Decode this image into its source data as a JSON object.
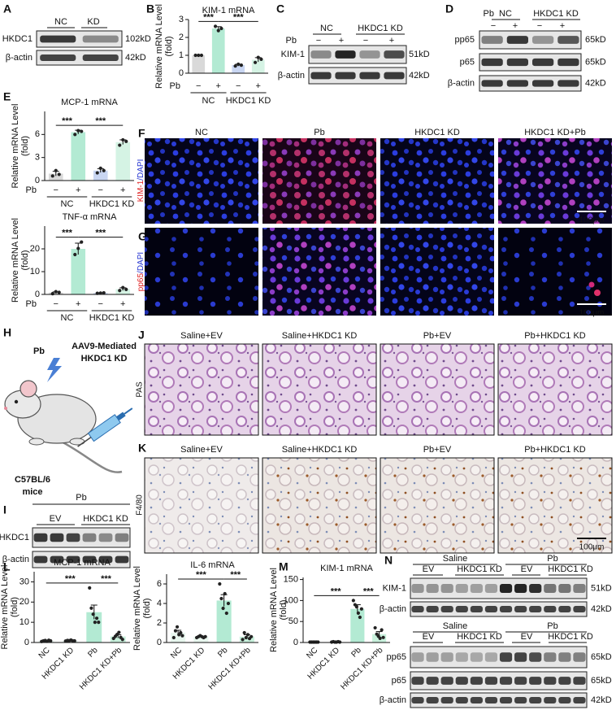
{
  "panel_letters": [
    "A",
    "B",
    "C",
    "D",
    "E",
    "F",
    "G",
    "H",
    "I",
    "J",
    "K",
    "L",
    "M",
    "N"
  ],
  "blot_A": {
    "headers": [
      "NC",
      "KD"
    ],
    "rows": [
      "HKDC1",
      "β-actin"
    ],
    "sizes": [
      "102kD",
      "42kD"
    ]
  },
  "blot_C": {
    "treatment": "Pb",
    "signs": [
      "−",
      "+",
      "−",
      "+"
    ],
    "groups": [
      "NC",
      "HKDC1 KD"
    ],
    "rows": [
      "KIM-1",
      "β-actin"
    ],
    "sizes": [
      "51kD",
      "42kD"
    ]
  },
  "blot_D": {
    "treatment": "Pb",
    "signs": [
      "−",
      "+",
      "−",
      "+"
    ],
    "groups": [
      "NC",
      "HKDC1 KD"
    ],
    "rows": [
      "pp65",
      "p65",
      "β-actin"
    ],
    "sizes": [
      "65kD",
      "65kD",
      "42kD"
    ]
  },
  "blot_I": {
    "treatment": "Pb",
    "groups": [
      "EV",
      "HKDC1 KD"
    ],
    "rows": [
      "HKDC1",
      "β-actin"
    ]
  },
  "blot_N_top": {
    "conditions": [
      "Saline",
      "Pb"
    ],
    "groups": [
      "EV",
      "HKDC1 KD",
      "EV",
      "HKDC1 KD"
    ],
    "rows": [
      "KIM-1",
      "β-actin"
    ],
    "sizes": [
      "51kD",
      "42kD"
    ]
  },
  "blot_N_bottom": {
    "conditions": [
      "Saline",
      "Pb"
    ],
    "groups": [
      "EV",
      "HKDC1 KD",
      "EV",
      "HKDC1 KD"
    ],
    "rows": [
      "pp65",
      "p65",
      "β-actin"
    ],
    "sizes": [
      "65kD",
      "65kD",
      "42kD"
    ]
  },
  "fluorescence": {
    "columns": [
      "NC",
      "Pb",
      "HKDC1 KD",
      "HKDC1 KD+Pb"
    ],
    "stain_F": [
      "KIM-1",
      "/DAPI"
    ],
    "stain_G": [
      "pp65",
      "/DAPI"
    ],
    "scale_bar": "100μm"
  },
  "model_H": {
    "treatment": "Pb",
    "vector": [
      "AAV9-Mediated",
      "HKDC1 KD"
    ],
    "mice": [
      "C57BL/6",
      "mice"
    ]
  },
  "histology": {
    "columns": [
      "Saline+EV",
      "Saline+HKDC1 KD",
      "Pb+EV",
      "Pb+HKDC1 KD"
    ],
    "stain_J": "PAS",
    "stain_K": "F4/80",
    "scale_bar": "100μm"
  },
  "chart_data": [
    {
      "type": "bar",
      "title": "KIM-1 mRNA",
      "ylabel": "Relative mRNA Level",
      "ylabel2": "(fold)",
      "treatment": "Pb",
      "categories": [
        "−",
        "+",
        "−",
        "+"
      ],
      "groups": [
        "NC",
        "HKDC1 KD"
      ],
      "values": [
        1.0,
        2.5,
        0.45,
        0.75
      ],
      "errors": [
        0.02,
        0.1,
        0.05,
        0.12
      ],
      "points": [
        [
          1,
          1,
          1
        ],
        [
          2.62,
          2.38,
          2.5
        ],
        [
          0.4,
          0.5,
          0.45
        ],
        [
          0.6,
          0.88,
          0.78
        ]
      ],
      "colors": [
        "#d9d9d9",
        "#b3ead3",
        "#c9d6f2",
        "#d5f3e4"
      ],
      "ylim": [
        0,
        3
      ],
      "yticks": [
        0,
        1,
        2,
        3
      ],
      "significance": [
        {
          "pair": [
            0,
            1
          ],
          "label": "***"
        },
        {
          "pair": [
            1,
            3
          ],
          "label": "***"
        }
      ]
    },
    {
      "type": "bar",
      "title": "MCP-1 mRNA",
      "ylabel": "Relative mRNA Level",
      "ylabel2": "(fold)",
      "treatment": "Pb",
      "categories": [
        "−",
        "+",
        "−",
        "+"
      ],
      "groups": [
        "NC",
        "HKDC1 KD"
      ],
      "values": [
        0.9,
        6.3,
        1.3,
        5.0
      ],
      "errors": [
        0.3,
        0.25,
        0.25,
        0.3
      ],
      "points": [
        [
          0.6,
          1.3,
          0.8
        ],
        [
          6.0,
          6.5,
          6.4
        ],
        [
          1.0,
          1.6,
          1.3
        ],
        [
          4.6,
          5.3,
          5.1
        ]
      ],
      "colors": [
        "#d9d9d9",
        "#b3ead3",
        "#c9d6f2",
        "#d5f3e4"
      ],
      "ylim": [
        0,
        9
      ],
      "yticks": [
        0,
        3,
        6
      ],
      "significance": [
        {
          "pair": [
            0,
            1
          ],
          "label": "***"
        },
        {
          "pair": [
            1,
            3
          ],
          "label": "***"
        }
      ]
    },
    {
      "type": "bar",
      "title": "TNF-α mRNA",
      "ylabel": "Relative mRNA Level",
      "ylabel2": "(fold)",
      "treatment": "Pb",
      "categories": [
        "−",
        "+",
        "−",
        "+"
      ],
      "groups": [
        "NC",
        "HKDC1 KD"
      ],
      "values": [
        0.8,
        20,
        0.6,
        2.3
      ],
      "errors": [
        0.3,
        2.5,
        0.1,
        0.6
      ],
      "points": [
        [
          0.3,
          1.2,
          0.9
        ],
        [
          17.5,
          20.2,
          23
        ],
        [
          0.5,
          0.6,
          0.7
        ],
        [
          1.7,
          3.0,
          2.2
        ]
      ],
      "colors": [
        "#d9d9d9",
        "#b3ead3",
        "#c9d6f2",
        "#d5f3e4"
      ],
      "ylim": [
        0,
        30
      ],
      "yticks": [
        0,
        10,
        20
      ],
      "significance": [
        {
          "pair": [
            0,
            1
          ],
          "label": "***"
        },
        {
          "pair": [
            1,
            3
          ],
          "label": "***"
        }
      ]
    },
    {
      "type": "bar",
      "title": "MCP-1 mRNA",
      "ylabel": "Relative mRNA Level",
      "ylabel2": "(fold)",
      "categories": [
        "NC",
        "HKDC1 KD",
        "Pb",
        "HKDC1 KD+Pb"
      ],
      "values": [
        0.8,
        0.9,
        15,
        3
      ],
      "errors": [
        0.2,
        0.2,
        3.5,
        0.8
      ],
      "points": [
        [
          0.5,
          0.8,
          1.0,
          0.6,
          1.1,
          0.8
        ],
        [
          0.7,
          1.0,
          0.9,
          1.2,
          0.8,
          0.8
        ],
        [
          27,
          17,
          14,
          10,
          12,
          10
        ],
        [
          2,
          3,
          4,
          5,
          2.5,
          1.5
        ]
      ],
      "colors": [
        "#e8f6ee",
        "#e8f6ee",
        "#b3ead3",
        "#c8f0dc"
      ],
      "ylim": [
        0,
        35
      ],
      "yticks": [
        0,
        10,
        20,
        30
      ],
      "significance": [
        {
          "pair": [
            0,
            2
          ],
          "label": "***"
        },
        {
          "pair": [
            2,
            3
          ],
          "label": "***"
        }
      ]
    },
    {
      "type": "bar",
      "title": "IL-6 mRNA",
      "ylabel": "Relative mRNA Level",
      "ylabel2": "(fold)",
      "categories": [
        "NC",
        "HKDC1 KD",
        "Pb",
        "HKDC1 KD+Pb"
      ],
      "values": [
        1.0,
        0.6,
        4.3,
        0.6
      ],
      "errors": [
        0.25,
        0.05,
        0.6,
        0.2
      ],
      "points": [
        [
          0.5,
          1.2,
          1.6,
          0.8,
          1.0,
          0.7
        ],
        [
          0.5,
          0.6,
          0.7,
          0.6,
          0.5,
          0.6
        ],
        [
          6.0,
          4.5,
          3.5,
          5.0,
          3.0,
          4.0
        ],
        [
          0.3,
          1.0,
          0.5,
          0.8,
          0.4,
          0.6
        ]
      ],
      "colors": [
        "#e8f6ee",
        "#e8f6ee",
        "#b3ead3",
        "#c8f0dc"
      ],
      "ylim": [
        0,
        7
      ],
      "yticks": [
        0,
        2,
        4,
        6
      ],
      "significance": [
        {
          "pair": [
            0,
            2
          ],
          "label": "***"
        },
        {
          "pair": [
            2,
            3
          ],
          "label": "***"
        }
      ]
    },
    {
      "type": "bar",
      "title": "KIM-1 mRNA",
      "ylabel": "Relative mRNA Level",
      "ylabel2": "(fold)",
      "categories": [
        "NC",
        "HKDC1 KD",
        "Pb",
        "HKDC1 KD+Pb"
      ],
      "values": [
        1,
        1,
        80,
        20
      ],
      "errors": [
        0.5,
        0.5,
        10,
        6
      ],
      "points": [
        [
          1,
          1,
          1,
          1,
          1,
          1
        ],
        [
          1,
          2,
          1,
          1,
          2,
          1
        ],
        [
          100,
          90,
          85,
          70,
          60,
          80
        ],
        [
          35,
          20,
          15,
          10,
          30,
          12
        ]
      ],
      "colors": [
        "#e8f6ee",
        "#e8f6ee",
        "#b3ead3",
        "#c8f0dc"
      ],
      "ylim": [
        0,
        155
      ],
      "yticks": [
        0,
        50,
        100,
        150
      ],
      "significance": [
        {
          "pair": [
            0,
            2
          ],
          "label": "***"
        },
        {
          "pair": [
            2,
            3
          ],
          "label": "***"
        }
      ]
    }
  ]
}
